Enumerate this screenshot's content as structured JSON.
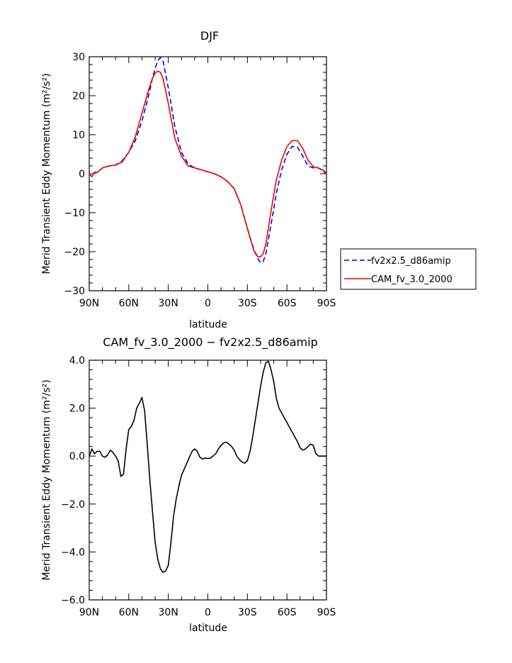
{
  "chart_data": [
    {
      "type": "line",
      "title": "DJF",
      "xlabel": "latitude",
      "ylabel": "Merid Transient Eddy Momentum (m²/s²)",
      "ylim": [
        -30,
        30
      ],
      "xlim": [
        -90,
        90
      ],
      "x_tick_values": [
        -90,
        -60,
        -30,
        0,
        30,
        60,
        90
      ],
      "x_tick_labels": [
        "90N",
        "60N",
        "30N",
        "0",
        "30S",
        "60S",
        "90S"
      ],
      "y_tick_values": [
        -30,
        -20,
        -10,
        0,
        10,
        20,
        30
      ],
      "y_tick_labels": [
        "−30",
        "−20",
        "−10",
        "0",
        "10",
        "20",
        "30"
      ],
      "legend": "right",
      "series": [
        {
          "name": "fv2x2.5_d86amip",
          "color": "#0000dd",
          "dash": "dashed",
          "x": [
            -90,
            -88,
            -86,
            -84,
            -80,
            -75,
            -70,
            -65,
            -60,
            -55,
            -50,
            -45,
            -42,
            -40,
            -38,
            -36,
            -34,
            -30,
            -25,
            -20,
            -15,
            -10,
            -5,
            0,
            5,
            10,
            15,
            20,
            25,
            30,
            35,
            38,
            40,
            42,
            44,
            48,
            52,
            56,
            60,
            64,
            68,
            72,
            76,
            80,
            84,
            88,
            90
          ],
          "y": [
            0,
            -0.8,
            0.4,
            0.3,
            1.5,
            2,
            2.2,
            3.3,
            5.5,
            8.5,
            13.5,
            20,
            24.5,
            27,
            29,
            29.8,
            29,
            22,
            12,
            5.5,
            2.5,
            1.5,
            1,
            0.5,
            0,
            -0.8,
            -2,
            -3.8,
            -8,
            -14,
            -19.5,
            -21.8,
            -22.8,
            -22.5,
            -20.5,
            -13,
            -5,
            1,
            5,
            7,
            6.8,
            4.5,
            2,
            1.5,
            1.5,
            0.5,
            0
          ]
        },
        {
          "name": "CAM_fv_3.0_2000",
          "color": "#ee0000",
          "dash": "solid",
          "x": [
            -90,
            -88,
            -86,
            -84,
            -80,
            -75,
            -70,
            -65,
            -60,
            -55,
            -50,
            -45,
            -42,
            -40,
            -38,
            -36,
            -34,
            -30,
            -25,
            -20,
            -15,
            -10,
            -5,
            0,
            5,
            10,
            15,
            20,
            25,
            30,
            35,
            38,
            40,
            42,
            44,
            48,
            52,
            56,
            60,
            64,
            68,
            72,
            76,
            80,
            84,
            88,
            90
          ],
          "y": [
            0,
            -0.8,
            0.4,
            0.3,
            1.5,
            2,
            2.2,
            3,
            5.5,
            9.5,
            15.5,
            21.5,
            24.5,
            25.8,
            26.3,
            26,
            24.5,
            18,
            9,
            4.5,
            2,
            1.5,
            1,
            0.5,
            0,
            -0.8,
            -2,
            -3.8,
            -8,
            -14,
            -19.8,
            -21.3,
            -21.3,
            -20.5,
            -18,
            -9.5,
            -1.5,
            3.5,
            7,
            8.5,
            8.5,
            6.5,
            3.5,
            1.8,
            1.5,
            0.8,
            0
          ]
        }
      ]
    },
    {
      "type": "line",
      "title": "CAM_fv_3.0_2000 − fv2x2.5_d86amip",
      "xlabel": "latitude",
      "ylabel": "Merid Transient Eddy Momentum (m²/s²)",
      "ylim": [
        -6,
        4
      ],
      "xlim": [
        -90,
        90
      ],
      "x_tick_values": [
        -90,
        -60,
        -30,
        0,
        30,
        60,
        90
      ],
      "x_tick_labels": [
        "90N",
        "60N",
        "30N",
        "0",
        "30S",
        "60S",
        "90S"
      ],
      "y_tick_values": [
        -6,
        -4,
        -2,
        0,
        2,
        4
      ],
      "y_tick_labels": [
        "−6.0",
        "−4.0",
        "−2.0",
        "0.0",
        "2.0",
        "4.0"
      ],
      "series": [
        {
          "color": "#000000",
          "dash": "solid",
          "x": [
            -90,
            -88,
            -86,
            -84,
            -82,
            -80,
            -78,
            -76,
            -74,
            -72,
            -70,
            -68,
            -66,
            -64,
            -62,
            -60,
            -58,
            -56,
            -54,
            -52,
            -50,
            -48,
            -46,
            -44,
            -42,
            -40,
            -38,
            -36,
            -34,
            -32,
            -30,
            -28,
            -26,
            -24,
            -22,
            -20,
            -18,
            -16,
            -14,
            -12,
            -10,
            -8,
            -6,
            -4,
            -2,
            0,
            2,
            4,
            6,
            8,
            10,
            12,
            14,
            16,
            18,
            20,
            22,
            24,
            26,
            28,
            30,
            32,
            34,
            36,
            38,
            40,
            42,
            44,
            46,
            48,
            50,
            52,
            54,
            56,
            58,
            60,
            62,
            64,
            66,
            68,
            70,
            72,
            74,
            76,
            78,
            80,
            82,
            84,
            86,
            88,
            90
          ],
          "y": [
            0,
            0.3,
            0.1,
            0.2,
            0.2,
            0,
            -0.05,
            0.05,
            0.25,
            0.15,
            0,
            -0.2,
            -0.85,
            -0.75,
            0.3,
            1.1,
            1.25,
            1.5,
            2,
            2.2,
            2.45,
            1.9,
            0.5,
            -1,
            -2.3,
            -3.6,
            -4.3,
            -4.7,
            -4.85,
            -4.8,
            -4.55,
            -3.6,
            -2.5,
            -1.8,
            -1.25,
            -0.8,
            -0.55,
            -0.3,
            -0.05,
            0.2,
            0.3,
            0.2,
            -0.05,
            -0.12,
            -0.08,
            -0.1,
            -0.08,
            0,
            0.1,
            0.3,
            0.45,
            0.55,
            0.58,
            0.5,
            0.4,
            0.25,
            0,
            -0.15,
            -0.25,
            -0.3,
            -0.2,
            0.2,
            0.8,
            1.5,
            2.2,
            2.9,
            3.5,
            3.9,
            3.95,
            3.6,
            3.1,
            2.4,
            2,
            1.8,
            1.6,
            1.4,
            1.2,
            1,
            0.8,
            0.6,
            0.35,
            0.25,
            0.3,
            0.4,
            0.5,
            0.45,
            0.1,
            0,
            0,
            0,
            0
          ]
        }
      ]
    }
  ]
}
